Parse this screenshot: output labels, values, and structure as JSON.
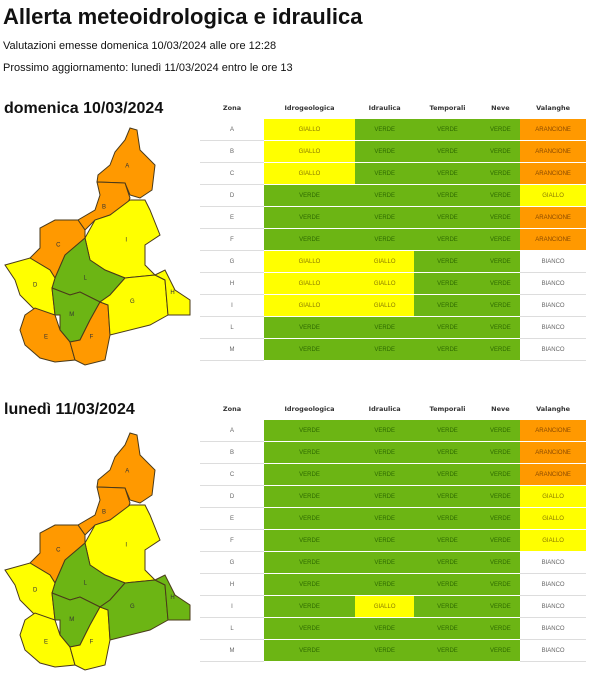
{
  "title": "Allerta meteoidrologica e idraulica",
  "issued": "Valutazioni emesse domenica 10/03/2024 alle ore 12:28",
  "next_update": "Prossimo aggiornamento: lunedì 11/03/2024 entro le ore 13",
  "colors": {
    "VERDE": "#6cb514",
    "GIALLO": "#ffff00",
    "ARANCIONE": "#ff9900",
    "BIANCO": "#ffffff"
  },
  "columns": [
    "Zona",
    "Idrogeologica",
    "Idraulica",
    "Temporali",
    "Neve",
    "Valanghe"
  ],
  "days": [
    {
      "label": "domenica 10/03/2024",
      "map_zone_colors": {
        "A": "ARANCIONE",
        "B": "ARANCIONE",
        "C": "ARANCIONE",
        "D": "GIALLO",
        "E": "ARANCIONE",
        "F": "ARANCIONE",
        "G": "GIALLO",
        "H": "GIALLO",
        "I": "GIALLO",
        "L": "VERDE",
        "M": "VERDE"
      },
      "rows": [
        [
          "A",
          "GIALLO",
          "VERDE",
          "VERDE",
          "VERDE",
          "ARANCIONE"
        ],
        [
          "B",
          "GIALLO",
          "VERDE",
          "VERDE",
          "VERDE",
          "ARANCIONE"
        ],
        [
          "C",
          "GIALLO",
          "VERDE",
          "VERDE",
          "VERDE",
          "ARANCIONE"
        ],
        [
          "D",
          "VERDE",
          "VERDE",
          "VERDE",
          "VERDE",
          "GIALLO"
        ],
        [
          "E",
          "VERDE",
          "VERDE",
          "VERDE",
          "VERDE",
          "ARANCIONE"
        ],
        [
          "F",
          "VERDE",
          "VERDE",
          "VERDE",
          "VERDE",
          "ARANCIONE"
        ],
        [
          "G",
          "GIALLO",
          "GIALLO",
          "VERDE",
          "VERDE",
          "BIANCO"
        ],
        [
          "H",
          "GIALLO",
          "GIALLO",
          "VERDE",
          "VERDE",
          "BIANCO"
        ],
        [
          "I",
          "GIALLO",
          "GIALLO",
          "VERDE",
          "VERDE",
          "BIANCO"
        ],
        [
          "L",
          "VERDE",
          "VERDE",
          "VERDE",
          "VERDE",
          "BIANCO"
        ],
        [
          "M",
          "VERDE",
          "VERDE",
          "VERDE",
          "VERDE",
          "BIANCO"
        ]
      ]
    },
    {
      "label": "lunedì 11/03/2024",
      "map_zone_colors": {
        "A": "ARANCIONE",
        "B": "ARANCIONE",
        "C": "ARANCIONE",
        "D": "GIALLO",
        "E": "GIALLO",
        "F": "GIALLO",
        "G": "VERDE",
        "H": "VERDE",
        "I": "GIALLO",
        "L": "VERDE",
        "M": "VERDE"
      },
      "rows": [
        [
          "A",
          "VERDE",
          "VERDE",
          "VERDE",
          "VERDE",
          "ARANCIONE"
        ],
        [
          "B",
          "VERDE",
          "VERDE",
          "VERDE",
          "VERDE",
          "ARANCIONE"
        ],
        [
          "C",
          "VERDE",
          "VERDE",
          "VERDE",
          "VERDE",
          "ARANCIONE"
        ],
        [
          "D",
          "VERDE",
          "VERDE",
          "VERDE",
          "VERDE",
          "GIALLO"
        ],
        [
          "E",
          "VERDE",
          "VERDE",
          "VERDE",
          "VERDE",
          "GIALLO"
        ],
        [
          "F",
          "VERDE",
          "VERDE",
          "VERDE",
          "VERDE",
          "GIALLO"
        ],
        [
          "G",
          "VERDE",
          "VERDE",
          "VERDE",
          "VERDE",
          "BIANCO"
        ],
        [
          "H",
          "VERDE",
          "VERDE",
          "VERDE",
          "VERDE",
          "BIANCO"
        ],
        [
          "I",
          "VERDE",
          "GIALLO",
          "VERDE",
          "VERDE",
          "BIANCO"
        ],
        [
          "L",
          "VERDE",
          "VERDE",
          "VERDE",
          "VERDE",
          "BIANCO"
        ],
        [
          "M",
          "VERDE",
          "VERDE",
          "VERDE",
          "VERDE",
          "BIANCO"
        ]
      ]
    }
  ]
}
